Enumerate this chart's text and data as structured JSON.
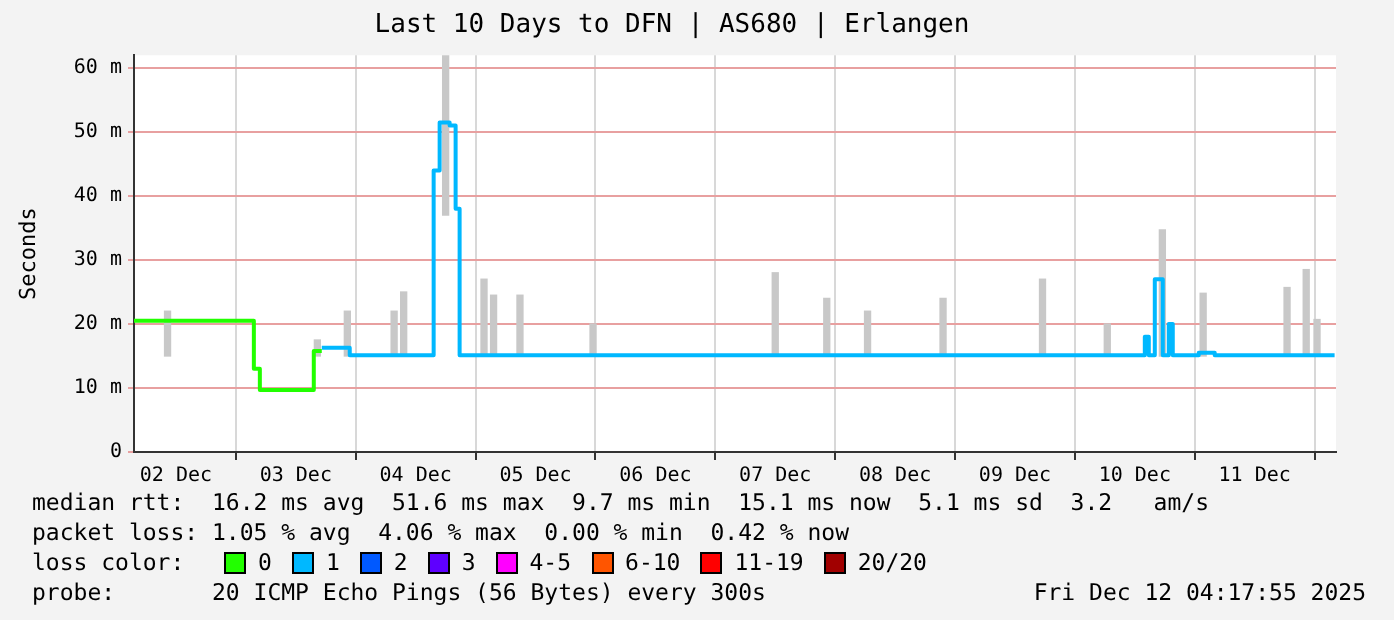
{
  "chart_data": {
    "type": "line",
    "title": "Last 10 Days to DFN | AS680 | Erlangen",
    "ylabel": "Seconds",
    "xlim": [
      "2025-12-02T03:36",
      "2025-12-12T04:17"
    ],
    "ylim": [
      0,
      62
    ],
    "xticks": [
      {
        "value": "2025-12-02T12:00",
        "label": "02 Dec"
      },
      {
        "value": "2025-12-03T12:00",
        "label": "03 Dec"
      },
      {
        "value": "2025-12-04T12:00",
        "label": "04 Dec"
      },
      {
        "value": "2025-12-05T12:00",
        "label": "05 Dec"
      },
      {
        "value": "2025-12-06T12:00",
        "label": "06 Dec"
      },
      {
        "value": "2025-12-07T12:00",
        "label": "07 Dec"
      },
      {
        "value": "2025-12-08T12:00",
        "label": "08 Dec"
      },
      {
        "value": "2025-12-09T12:00",
        "label": "09 Dec"
      },
      {
        "value": "2025-12-10T12:00",
        "label": "10 Dec"
      },
      {
        "value": "2025-12-11T12:00",
        "label": "11 Dec"
      }
    ],
    "yticks": [
      {
        "value": 0,
        "label": "0"
      },
      {
        "value": 10,
        "label": "10 m"
      },
      {
        "value": 20,
        "label": "20 m"
      },
      {
        "value": 30,
        "label": "30 m"
      },
      {
        "value": 40,
        "label": "40 m"
      },
      {
        "value": 50,
        "label": "50 m"
      },
      {
        "value": 60,
        "label": "60 m"
      }
    ],
    "grid": true,
    "legend": "bottom",
    "legend_title": "loss color:",
    "series": [
      {
        "type": "bar",
        "color": "#c8c8c8",
        "x": [
          "2025-12-02T10:19",
          "2025-12-03T16:19",
          "2025-12-03T22:19",
          "2025-12-04T07:41",
          "2025-12-04T09:36",
          "2025-12-04T18:00",
          "2025-12-05T01:41",
          "2025-12-05T03:36",
          "2025-12-05T08:53",
          "2025-12-05T23:31",
          "2025-12-07T12:00",
          "2025-12-07T22:19",
          "2025-12-08T06:29",
          "2025-12-08T21:36",
          "2025-12-09T17:31",
          "2025-12-10T06:29",
          "2025-12-10T17:31",
          "2025-12-11T01:41",
          "2025-12-11T18:29",
          "2025-12-11T22:19",
          "2025-12-12T00:29"
        ],
        "base": [
          15,
          15,
          15,
          15,
          15,
          37,
          15,
          15,
          15,
          15,
          15,
          15,
          15,
          15,
          15,
          15,
          15,
          15,
          15,
          15,
          15
        ],
        "values": [
          7,
          2.5,
          7,
          7,
          10,
          25,
          12,
          9.5,
          9.5,
          5,
          13,
          9,
          7,
          9,
          12,
          5,
          19.7,
          9.8,
          10.7,
          13.5,
          5.7
        ]
      },
      {
        "name": "0",
        "color": "#22ff00",
        "x": [
          "2025-12-02T03:36",
          "2025-12-03T03:36",
          "2025-12-03T03:36",
          "2025-12-03T04:48",
          "2025-12-03T04:48",
          "2025-12-03T15:36",
          "2025-12-03T15:36",
          "2025-12-03T17:12"
        ],
        "values": [
          20.5,
          20.5,
          13,
          13,
          9.7,
          9.7,
          15.8,
          15.8
        ]
      },
      {
        "name": "1",
        "color": "#00b8ff",
        "x": [
          "2025-12-03T17:12",
          "2025-12-03T22:48",
          "2025-12-03T22:48",
          "2025-12-04T15:36",
          "2025-12-04T15:36",
          "2025-12-04T16:48",
          "2025-12-04T16:48",
          "2025-12-04T18:48",
          "2025-12-04T18:48",
          "2025-12-04T20:00",
          "2025-12-04T20:00",
          "2025-12-04T20:48",
          "2025-12-04T20:48",
          "2025-12-10T14:00",
          "2025-12-10T14:00",
          "2025-12-10T14:48",
          "2025-12-10T14:48",
          "2025-12-10T16:00",
          "2025-12-10T16:00",
          "2025-12-10T17:36",
          "2025-12-10T17:36",
          "2025-12-10T18:48",
          "2025-12-10T18:48",
          "2025-12-10T19:36",
          "2025-12-10T19:36",
          "2025-12-11T00:48",
          "2025-12-11T00:48",
          "2025-12-11T04:00",
          "2025-12-11T04:00",
          "2025-12-12T04:00"
        ],
        "values": [
          16.3,
          16.3,
          15.1,
          15.1,
          44,
          44,
          51.5,
          51.5,
          51,
          51,
          38,
          38,
          15.1,
          15.1,
          18,
          18,
          15.1,
          15.1,
          27,
          27,
          15.1,
          15.1,
          20,
          20,
          15.1,
          15.1,
          15.5,
          15.5,
          15.1,
          15.1
        ]
      },
      {
        "name": "2",
        "color": "#0059ff"
      },
      {
        "name": "3",
        "color": "#5e00ff"
      },
      {
        "name": "4-5",
        "color": "#ff00ff"
      },
      {
        "name": "6-10",
        "color": "#ff5500"
      },
      {
        "name": "11-19",
        "color": "#ff0000"
      },
      {
        "name": "20/20",
        "color": "#a10000"
      }
    ],
    "annotations": [
      "median rtt:  16.2 ms avg  51.6 ms max  9.7 ms min  15.1 ms now  5.1 ms sd  3.2   am/s",
      "packet loss: 1.05 % avg  4.06 % max  0.00 % min  0.42 % now",
      "probe:       20 ICMP Echo Pings (56 Bytes) every 300s",
      "Fri Dec 12 04:17:55 2025"
    ]
  }
}
